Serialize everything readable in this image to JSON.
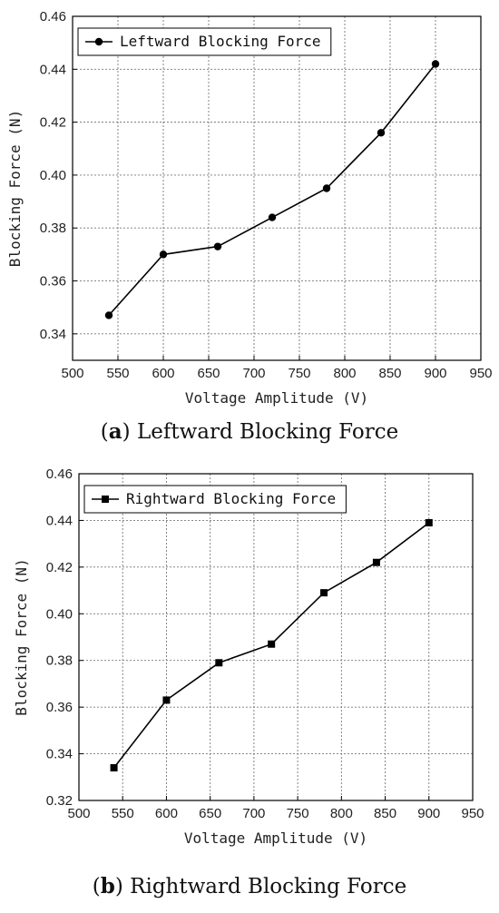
{
  "chart_data": [
    {
      "type": "line",
      "marker": "circle",
      "caption_letter": "a",
      "caption_text": "Leftward Blocking Force",
      "xlabel": "Voltage Amplitude (V)",
      "ylabel": "Blocking Force (N)",
      "xlim": [
        500,
        950
      ],
      "ylim": [
        0.33,
        0.46
      ],
      "xticks": [
        500,
        550,
        600,
        650,
        700,
        750,
        800,
        850,
        900,
        950
      ],
      "yticks": [
        0.34,
        0.36,
        0.38,
        0.4,
        0.42,
        0.44,
        0.46
      ],
      "grid": true,
      "legend_position": "top-left",
      "series": [
        {
          "name": "Leftward Blocking Force",
          "x": [
            540,
            600,
            660,
            720,
            780,
            840,
            900
          ],
          "y": [
            0.347,
            0.37,
            0.373,
            0.384,
            0.395,
            0.416,
            0.442
          ]
        }
      ]
    },
    {
      "type": "line",
      "marker": "square",
      "caption_letter": "b",
      "caption_text": "Rightward Blocking Force",
      "xlabel": "Voltage Amplitude (V)",
      "ylabel": "Blocking Force (N)",
      "xlim": [
        500,
        950
      ],
      "ylim": [
        0.32,
        0.46
      ],
      "xticks": [
        500,
        550,
        600,
        650,
        700,
        750,
        800,
        850,
        900,
        950
      ],
      "yticks": [
        0.32,
        0.34,
        0.36,
        0.38,
        0.4,
        0.42,
        0.44,
        0.46
      ],
      "grid": true,
      "legend_position": "top-left",
      "series": [
        {
          "name": "Rightward Blocking Force",
          "x": [
            540,
            600,
            660,
            720,
            780,
            840,
            900
          ],
          "y": [
            0.334,
            0.363,
            0.379,
            0.387,
            0.409,
            0.422,
            0.439
          ]
        }
      ]
    }
  ]
}
